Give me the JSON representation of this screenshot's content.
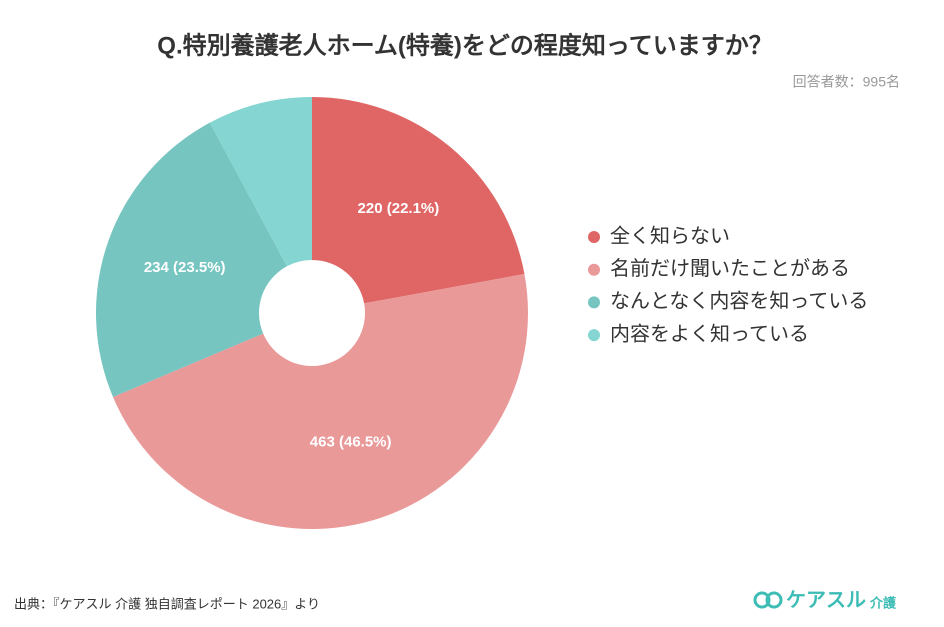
{
  "chart_data": {
    "type": "pie",
    "title": "Q.特別養護老人ホーム(特養)をどの程度知っていますか？",
    "subtitle": "回答者数：995名",
    "categories": [
      "全く知らない",
      "名前だけ聞いたことがある",
      "なんとなく内容を知っている",
      "内容をよく知っている"
    ],
    "values": [
      220,
      463,
      234,
      78
    ],
    "value_labels": [
      "220 (22.1%)",
      "463 (46.5%)",
      "234 (23.5%)",
      null
    ],
    "colors": [
      "#e06666",
      "#ea9999",
      "#76c5c0",
      "#85d6d2"
    ],
    "legend": "right"
  },
  "source": "出典：『ケアスル 介護 独自調査レポート 2026』より",
  "logo": {
    "text": "ケアスル",
    "sub": "介護"
  }
}
